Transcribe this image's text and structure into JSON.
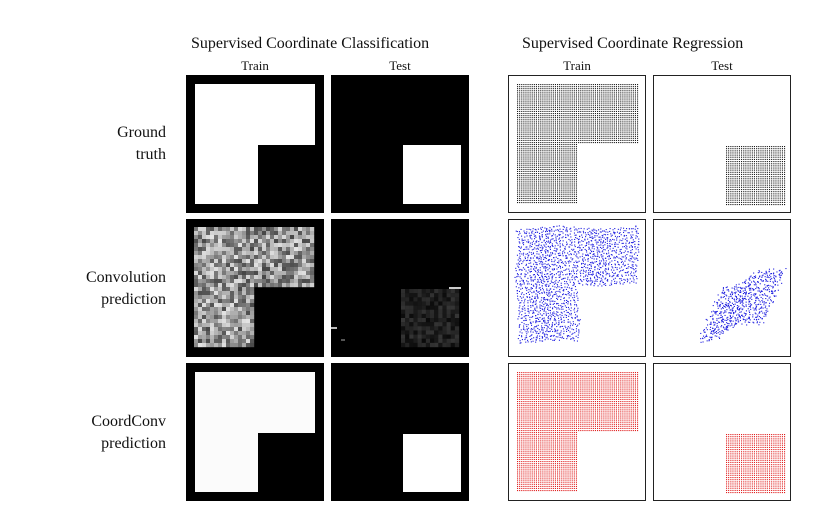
{
  "headers": {
    "classification": "Supervised Coordinate Classification",
    "regression": "Supervised Coordinate Regression"
  },
  "columns": {
    "cls_train": "Train",
    "cls_test": "Test",
    "reg_train": "Train",
    "reg_test": "Test"
  },
  "rows": {
    "ground_truth": [
      "Ground",
      "truth"
    ],
    "convolution": [
      "Convolution",
      "prediction"
    ],
    "coordconv": [
      "CoordConv",
      "prediction"
    ]
  },
  "colors": {
    "ground_truth_points": "#1a1a1a",
    "convolution_points": "#1f1fe0",
    "coordconv_points": "#e01f1f"
  },
  "notes": {
    "train_region": "L-shaped region (square minus bottom-right quadrant)",
    "test_region": "bottom-right quadrant"
  }
}
